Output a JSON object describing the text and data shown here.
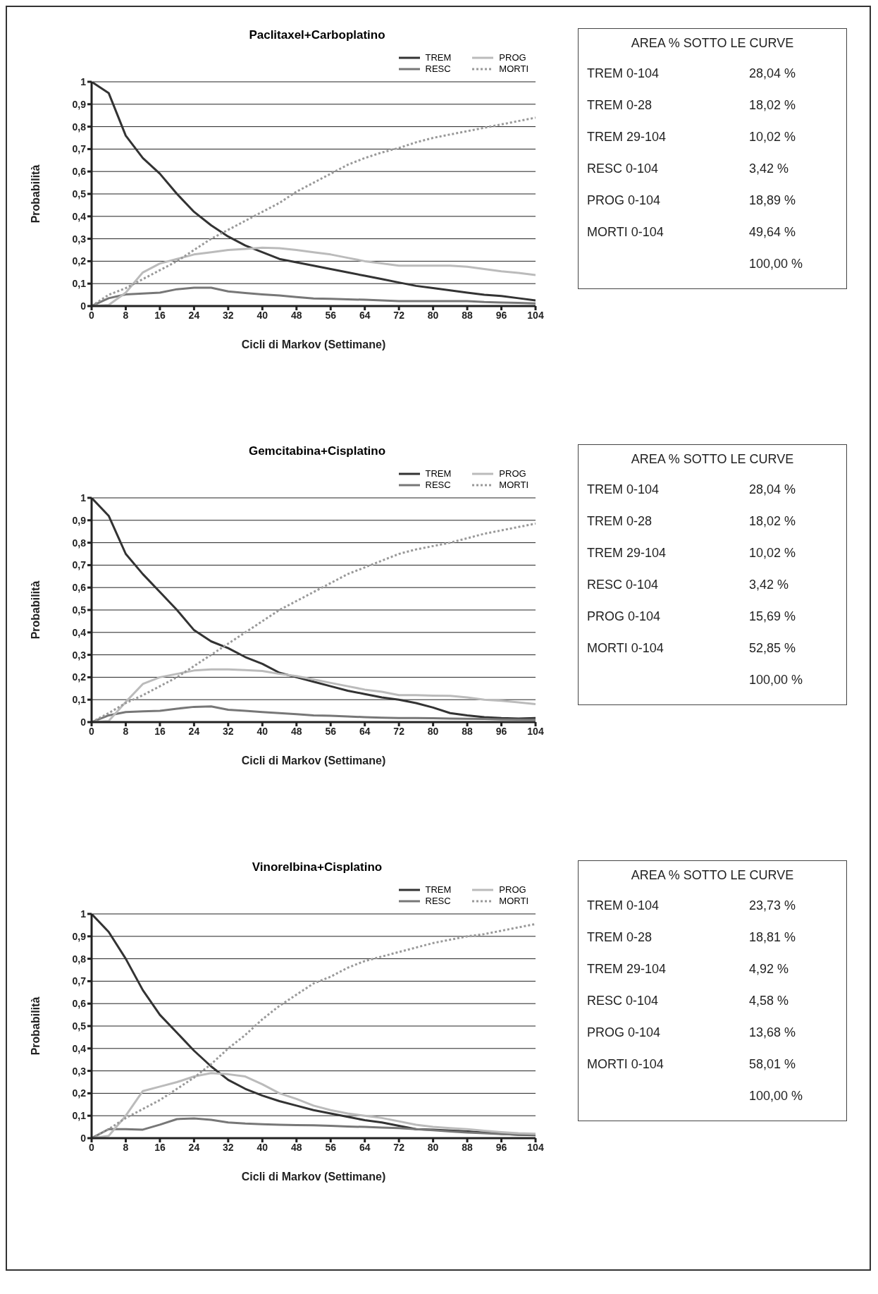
{
  "chart_data": [
    {
      "type": "line",
      "title": "Paclitaxel+Carboplatino",
      "xlabel": "Cicli di Markov (Settimane)",
      "ylabel": "Probabilità",
      "x": [
        0,
        4,
        8,
        12,
        16,
        20,
        24,
        28,
        32,
        36,
        40,
        44,
        48,
        52,
        56,
        60,
        64,
        68,
        72,
        76,
        80,
        84,
        88,
        92,
        96,
        100,
        104
      ],
      "xlim": [
        0,
        104
      ],
      "xticks": [
        0,
        8,
        16,
        24,
        32,
        40,
        48,
        56,
        64,
        72,
        80,
        88,
        96,
        104
      ],
      "ylim": [
        0,
        1
      ],
      "yticks": [
        {
          "value": 0,
          "label": "0"
        },
        {
          "value": 0.1,
          "label": "0,1"
        },
        {
          "value": 0.2,
          "label": "0,2"
        },
        {
          "value": 0.3,
          "label": "0,3"
        },
        {
          "value": 0.4,
          "label": "0,4"
        },
        {
          "value": 0.5,
          "label": "0,5"
        },
        {
          "value": 0.6,
          "label": "0,6"
        },
        {
          "value": 0.7,
          "label": "0,7"
        },
        {
          "value": 0.8,
          "label": "0,8"
        },
        {
          "value": 0.9,
          "label": "0,9"
        },
        {
          "value": 1,
          "label": "1"
        }
      ],
      "grid": "y",
      "legend": "top right",
      "marker": "none",
      "line_style": "solid",
      "series": [
        {
          "name": "TREM",
          "color": "#333333",
          "values": [
            1,
            0.95,
            0.76,
            0.66,
            0.59,
            0.5,
            0.42,
            0.36,
            0.31,
            0.27,
            0.24,
            0.21,
            0.195,
            0.18,
            0.165,
            0.15,
            0.135,
            0.12,
            0.105,
            0.09,
            0.08,
            0.07,
            0.06,
            0.05,
            0.045,
            0.035,
            0.025
          ]
        },
        {
          "name": "RESC",
          "color": "#777777",
          "values": [
            0,
            0.035,
            0.052,
            0.056,
            0.06,
            0.075,
            0.082,
            0.082,
            0.065,
            0.058,
            0.052,
            0.047,
            0.04,
            0.034,
            0.032,
            0.03,
            0.028,
            0.025,
            0.022,
            0.022,
            0.022,
            0.022,
            0.022,
            0.018,
            0.016,
            0.014,
            0.012
          ]
        },
        {
          "name": "PROG",
          "color": "#bbbbbb",
          "values": [
            0,
            0.005,
            0.06,
            0.15,
            0.19,
            0.21,
            0.23,
            0.24,
            0.25,
            0.255,
            0.26,
            0.258,
            0.25,
            0.24,
            0.23,
            0.215,
            0.2,
            0.19,
            0.18,
            0.18,
            0.18,
            0.18,
            0.175,
            0.165,
            0.155,
            0.148,
            0.138
          ]
        },
        {
          "name": "MORTI",
          "color": "#999999",
          "line_style": "dotted",
          "values": [
            0,
            0.05,
            0.08,
            0.12,
            0.16,
            0.2,
            0.25,
            0.3,
            0.34,
            0.38,
            0.42,
            0.46,
            0.51,
            0.55,
            0.59,
            0.63,
            0.66,
            0.685,
            0.705,
            0.73,
            0.75,
            0.765,
            0.78,
            0.795,
            0.81,
            0.825,
            0.84
          ]
        }
      ]
    },
    {
      "type": "other",
      "title": "AREA % SOTTO LE CURVE",
      "categories": [
        "TREM 0-104",
        "TREM 0-28",
        "TREM 29-104",
        "RESC 0-104",
        "PROG 0-104",
        "MORTI 0-104",
        null
      ],
      "value_labels": [
        "28,04 %",
        "18,02 %",
        "10,02 %",
        "3,42 %",
        "18,89 %",
        "49,64 %",
        "100,00 %"
      ]
    },
    {
      "type": "line",
      "title": "Gemcitabina+Cisplatino",
      "xlabel": "Cicli di Markov (Settimane)",
      "ylabel": "Probabilità",
      "x": [
        0,
        4,
        8,
        12,
        16,
        20,
        24,
        28,
        32,
        36,
        40,
        44,
        48,
        52,
        56,
        60,
        64,
        68,
        72,
        76,
        80,
        84,
        88,
        92,
        96,
        100,
        104
      ],
      "xlim": [
        0,
        104
      ],
      "xticks": [
        0,
        8,
        16,
        24,
        32,
        40,
        48,
        56,
        64,
        72,
        80,
        88,
        96,
        104
      ],
      "ylim": [
        0,
        1
      ],
      "yticks": [
        {
          "value": 0,
          "label": "0"
        },
        {
          "value": 0.1,
          "label": "0,1"
        },
        {
          "value": 0.2,
          "label": "0,2"
        },
        {
          "value": 0.3,
          "label": "0,3"
        },
        {
          "value": 0.4,
          "label": "0,4"
        },
        {
          "value": 0.5,
          "label": "0,5"
        },
        {
          "value": 0.6,
          "label": "0,6"
        },
        {
          "value": 0.7,
          "label": "0,7"
        },
        {
          "value": 0.8,
          "label": "0,8"
        },
        {
          "value": 0.9,
          "label": "0,9"
        },
        {
          "value": 1,
          "label": "1"
        }
      ],
      "grid": "y",
      "legend": "top right",
      "marker": "none",
      "line_style": "solid",
      "series": [
        {
          "name": "TREM",
          "color": "#333333",
          "values": [
            1,
            0.92,
            0.75,
            0.66,
            0.58,
            0.5,
            0.41,
            0.36,
            0.33,
            0.29,
            0.26,
            0.22,
            0.2,
            0.18,
            0.16,
            0.14,
            0.125,
            0.11,
            0.1,
            0.085,
            0.065,
            0.04,
            0.03,
            0.022,
            0.018,
            0.016,
            0.018
          ]
        },
        {
          "name": "RESC",
          "color": "#777777",
          "values": [
            0,
            0.03,
            0.045,
            0.048,
            0.05,
            0.06,
            0.068,
            0.07,
            0.055,
            0.05,
            0.045,
            0.04,
            0.035,
            0.03,
            0.028,
            0.025,
            0.022,
            0.02,
            0.018,
            0.018,
            0.017,
            0.016,
            0.015,
            0.014,
            0.012,
            0.011,
            0.01
          ]
        },
        {
          "name": "PROG",
          "color": "#bbbbbb",
          "values": [
            0,
            0.005,
            0.09,
            0.17,
            0.2,
            0.215,
            0.23,
            0.235,
            0.235,
            0.232,
            0.228,
            0.215,
            0.205,
            0.19,
            0.175,
            0.16,
            0.145,
            0.135,
            0.12,
            0.12,
            0.118,
            0.117,
            0.11,
            0.1,
            0.095,
            0.088,
            0.08
          ]
        },
        {
          "name": "MORTI",
          "color": "#999999",
          "line_style": "dotted",
          "values": [
            0,
            0.04,
            0.085,
            0.12,
            0.16,
            0.2,
            0.25,
            0.3,
            0.35,
            0.4,
            0.45,
            0.5,
            0.54,
            0.58,
            0.62,
            0.66,
            0.69,
            0.72,
            0.75,
            0.77,
            0.785,
            0.8,
            0.82,
            0.84,
            0.855,
            0.87,
            0.885
          ]
        }
      ]
    },
    {
      "type": "other",
      "title": "AREA % SOTTO LE CURVE",
      "categories": [
        "TREM 0-104",
        "TREM 0-28",
        "TREM 29-104",
        "RESC 0-104",
        "PROG 0-104",
        "MORTI 0-104",
        null
      ],
      "value_labels": [
        "28,04 %",
        "18,02 %",
        "10,02 %",
        "3,42 %",
        "15,69 %",
        "52,85 %",
        "100,00 %"
      ]
    },
    {
      "type": "line",
      "title": "Vinorelbina+Cisplatino",
      "xlabel": "Cicli di Markov (Settimane)",
      "ylabel": "Probabilità",
      "x": [
        0,
        4,
        8,
        12,
        16,
        20,
        24,
        28,
        32,
        36,
        40,
        44,
        48,
        52,
        56,
        60,
        64,
        68,
        72,
        76,
        80,
        84,
        88,
        92,
        96,
        100,
        104
      ],
      "xlim": [
        0,
        104
      ],
      "xticks": [
        0,
        8,
        16,
        24,
        32,
        40,
        48,
        56,
        64,
        72,
        80,
        88,
        96,
        104
      ],
      "ylim": [
        0,
        1
      ],
      "yticks": [
        {
          "value": 0,
          "label": "0"
        },
        {
          "value": 0.1,
          "label": "0,1"
        },
        {
          "value": 0.2,
          "label": "0,2"
        },
        {
          "value": 0.3,
          "label": "0,3"
        },
        {
          "value": 0.4,
          "label": "0,4"
        },
        {
          "value": 0.5,
          "label": "0,5"
        },
        {
          "value": 0.6,
          "label": "0,6"
        },
        {
          "value": 0.7,
          "label": "0,7"
        },
        {
          "value": 0.8,
          "label": "0,8"
        },
        {
          "value": 0.9,
          "label": "0,9"
        },
        {
          "value": 1,
          "label": "1"
        }
      ],
      "grid": "y",
      "legend": "top right",
      "marker": "none",
      "line_style": "solid",
      "series": [
        {
          "name": "TREM",
          "color": "#333333",
          "values": [
            1,
            0.92,
            0.8,
            0.66,
            0.55,
            0.47,
            0.39,
            0.32,
            0.26,
            0.22,
            0.19,
            0.165,
            0.145,
            0.125,
            0.11,
            0.095,
            0.08,
            0.07,
            0.055,
            0.04,
            0.038,
            0.034,
            0.03,
            0.025,
            0.02,
            0.015,
            0.013
          ]
        },
        {
          "name": "RESC",
          "color": "#777777",
          "values": [
            0,
            0.04,
            0.04,
            0.038,
            0.06,
            0.085,
            0.088,
            0.082,
            0.07,
            0.065,
            0.062,
            0.06,
            0.058,
            0.057,
            0.055,
            0.052,
            0.05,
            0.047,
            0.045,
            0.04,
            0.035,
            0.03,
            0.025,
            0.022,
            0.018,
            0.016,
            0.015
          ]
        },
        {
          "name": "PROG",
          "color": "#bbbbbb",
          "values": [
            0,
            0.01,
            0.1,
            0.21,
            0.23,
            0.25,
            0.275,
            0.29,
            0.285,
            0.275,
            0.24,
            0.2,
            0.175,
            0.145,
            0.125,
            0.11,
            0.1,
            0.09,
            0.075,
            0.06,
            0.05,
            0.045,
            0.04,
            0.033,
            0.027,
            0.022,
            0.02
          ]
        },
        {
          "name": "MORTI",
          "color": "#999999",
          "line_style": "dotted",
          "values": [
            0,
            0.04,
            0.09,
            0.13,
            0.17,
            0.22,
            0.27,
            0.33,
            0.4,
            0.46,
            0.53,
            0.59,
            0.64,
            0.69,
            0.72,
            0.76,
            0.79,
            0.81,
            0.83,
            0.85,
            0.87,
            0.885,
            0.9,
            0.91,
            0.925,
            0.94,
            0.955
          ]
        }
      ]
    },
    {
      "type": "other",
      "title": "AREA % SOTTO LE CURVE",
      "categories": [
        "TREM 0-104",
        "TREM 0-28",
        "TREM 29-104",
        "RESC 0-104",
        "PROG 0-104",
        "MORTI 0-104",
        null
      ],
      "value_labels": [
        "23,73 %",
        "18,81 %",
        "4,92 %",
        "4,58 %",
        "13,68 %",
        "58,01 %",
        "100,00 %"
      ]
    }
  ]
}
